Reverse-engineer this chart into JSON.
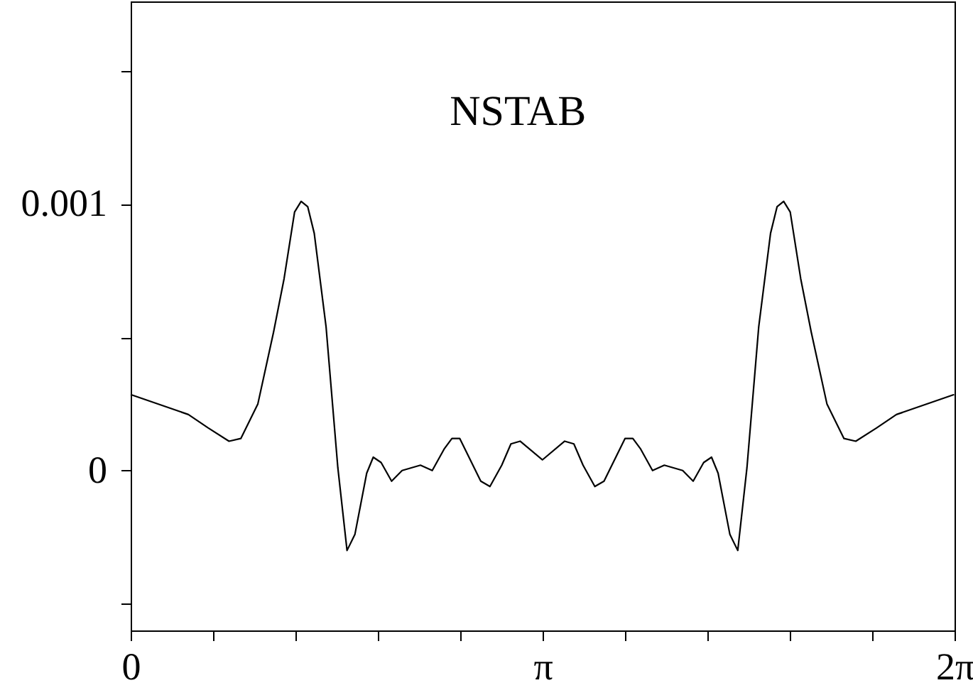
{
  "chart_data": {
    "type": "line",
    "annotations": [
      "NSTAB"
    ],
    "x": [
      0,
      0.44,
      0.59,
      0.75,
      0.84,
      0.97,
      1.09,
      1.17,
      1.25,
      1.3,
      1.35,
      1.4,
      1.49,
      1.58,
      1.65,
      1.71,
      1.8,
      1.85,
      1.91,
      1.99,
      2.07,
      2.21,
      2.3,
      2.39,
      2.45,
      2.51,
      2.67,
      2.74,
      2.83,
      2.9,
      2.97,
      3.14,
      3.31,
      3.38,
      3.45,
      3.54,
      3.61,
      3.77,
      3.83,
      3.89,
      3.98,
      4.07,
      4.21,
      4.29,
      4.37,
      4.43,
      4.48,
      4.57,
      4.63,
      4.7,
      4.79,
      4.88,
      4.93,
      4.98,
      5.03,
      5.11,
      5.19,
      5.31,
      5.44,
      5.53,
      5.69,
      5.84,
      6.28
    ],
    "series": [
      {
        "color": "#000000",
        "values": [
          0.000285,
          0.00021,
          0.00016,
          0.00011,
          0.00012,
          0.00025,
          0.00052,
          0.00072,
          0.00097,
          0.00101,
          0.00099,
          0.00089,
          0.00054,
          1e-05,
          -0.0003,
          -0.00024,
          -1e-05,
          5e-05,
          3e-05,
          -4e-05,
          0,
          2e-05,
          0,
          8e-05,
          0.00012,
          0.00012,
          -4e-05,
          -6e-05,
          2e-05,
          0.0001,
          0.00011,
          4e-05,
          0.00011,
          0.0001,
          2e-05,
          -6e-05,
          -4e-05,
          0.00012,
          0.00012,
          8e-05,
          0,
          2e-05,
          0,
          -4e-05,
          3e-05,
          5e-05,
          -1e-05,
          -0.00024,
          -0.0003,
          1e-05,
          0.00054,
          0.00089,
          0.00099,
          0.00101,
          0.00097,
          0.00072,
          0.00052,
          0.00025,
          0.00012,
          0.00011,
          0.00016,
          0.00021,
          0.000285
        ]
      }
    ],
    "xlim": [
      0,
      6.2832
    ],
    "xticks": [
      0,
      {
        "value": 0.6283,
        "label": null
      },
      {
        "value": 1.2566,
        "label": null
      },
      {
        "value": 1.885,
        "label": null
      },
      {
        "value": 2.5133,
        "label": null
      },
      {
        "value": 3.1416,
        "label": "π"
      },
      {
        "value": 3.7699,
        "label": null
      },
      {
        "value": 4.3982,
        "label": null
      },
      {
        "value": 5.0265,
        "label": null
      },
      {
        "value": 5.6549,
        "label": null
      },
      {
        "value": 6.2832,
        "label": "2π"
      }
    ],
    "ylim": [
      -0.0006,
      0.00176
    ],
    "yticks": [
      {
        "value": -0.0005,
        "label": null
      },
      0,
      {
        "value": 0.0005,
        "label": null
      },
      0.001,
      {
        "value": 0.0015,
        "label": null
      }
    ],
    "grid": false,
    "marker": "none",
    "line_style": "solid"
  }
}
